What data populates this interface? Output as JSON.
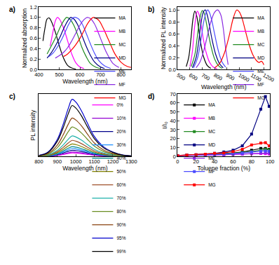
{
  "chart_data": [
    {
      "type": "line",
      "title": "a)",
      "x_label": "Wavelength (nm)",
      "y_label": "Normalized absorption",
      "xlim": [
        400,
        850
      ],
      "xticks": [
        400,
        500,
        600,
        700,
        800
      ],
      "ylim": [
        0,
        1.2
      ],
      "yticks": [
        {
          "value": 0,
          "label": "0.0"
        },
        {
          "value": 0.2,
          "label": "0.2"
        },
        {
          "value": 0.4,
          "label": "0.4"
        },
        {
          "value": 0.6,
          "label": "0.6"
        },
        {
          "value": 0.8,
          "label": "0.8"
        },
        {
          "value": 1.0,
          "label": "1.0"
        },
        {
          "value": 1.2,
          "label": "1.2"
        }
      ],
      "grid": false,
      "legend": "upper right",
      "series": [
        {
          "name": "MA",
          "color": "#000000",
          "x": [
            420,
            430,
            440,
            450,
            460,
            480,
            500,
            520,
            540,
            560,
            580
          ],
          "values": [
            0.55,
            0.8,
            0.97,
            0.99,
            0.93,
            0.72,
            0.45,
            0.22,
            0.08,
            0.03,
            0.01
          ]
        },
        {
          "name": "MB",
          "color": "#ff00ff",
          "x": [
            455,
            470,
            480,
            490,
            500,
            520,
            540,
            560,
            580,
            600,
            620
          ],
          "values": [
            0.45,
            0.75,
            0.93,
            1.0,
            0.97,
            0.8,
            0.55,
            0.3,
            0.13,
            0.05,
            0.02
          ]
        },
        {
          "name": "MC",
          "color": "#228b22",
          "x": [
            440,
            460,
            480,
            500,
            520,
            535,
            550,
            570,
            590,
            610,
            630,
            650,
            680,
            700
          ],
          "values": [
            0.3,
            0.45,
            0.6,
            0.78,
            0.93,
            1.0,
            0.97,
            0.85,
            0.65,
            0.42,
            0.25,
            0.12,
            0.04,
            0.02
          ]
        },
        {
          "name": "MD",
          "color": "#000080",
          "x": [
            440,
            460,
            480,
            500,
            520,
            540,
            555,
            570,
            590,
            610,
            630,
            650,
            670,
            700,
            720
          ],
          "values": [
            0.22,
            0.32,
            0.45,
            0.6,
            0.78,
            0.93,
            1.0,
            0.97,
            0.85,
            0.65,
            0.45,
            0.28,
            0.15,
            0.05,
            0.02
          ]
        },
        {
          "name": "ME",
          "color": "#4b4bff",
          "x": [
            450,
            470,
            490,
            510,
            530,
            550,
            570,
            590,
            610,
            630,
            650,
            670,
            690,
            720,
            750
          ],
          "values": [
            0.25,
            0.32,
            0.43,
            0.57,
            0.74,
            0.9,
            1.0,
            0.98,
            0.88,
            0.7,
            0.5,
            0.32,
            0.18,
            0.07,
            0.02
          ]
        },
        {
          "name": "MF",
          "color": "#8a2be2",
          "x": [
            480,
            500,
            520,
            540,
            560,
            580,
            600,
            620,
            635,
            650,
            670,
            690,
            710,
            730,
            760,
            790
          ],
          "values": [
            0.22,
            0.27,
            0.33,
            0.42,
            0.55,
            0.7,
            0.85,
            0.96,
            1.0,
            0.98,
            0.88,
            0.7,
            0.5,
            0.32,
            0.12,
            0.04
          ]
        },
        {
          "name": "MG",
          "color": "#ff0000",
          "x": [
            520,
            540,
            560,
            580,
            600,
            620,
            640,
            665,
            690,
            710,
            730,
            750,
            770,
            800,
            830,
            850
          ],
          "values": [
            0.25,
            0.3,
            0.38,
            0.48,
            0.6,
            0.75,
            0.9,
            1.0,
            0.95,
            0.82,
            0.65,
            0.47,
            0.3,
            0.14,
            0.06,
            0.04
          ]
        }
      ]
    },
    {
      "type": "line",
      "title": "b)",
      "x_label": "Wavelength (nm)",
      "y_label": "Normalized PL intensity",
      "xlim": [
        500,
        1250
      ],
      "xticks": [
        500,
        600,
        700,
        800,
        900,
        1000,
        1100,
        1200
      ],
      "ylim": [
        0,
        1.05
      ],
      "yticks": [
        {
          "value": 0,
          "label": "0.0"
        },
        {
          "value": 0.2,
          "label": "0.2"
        },
        {
          "value": 0.4,
          "label": "0.4"
        },
        {
          "value": 0.6,
          "label": "0.6"
        },
        {
          "value": 0.8,
          "label": "0.8"
        },
        {
          "value": 1.0,
          "label": "1.0"
        }
      ],
      "grid": false,
      "legend": "upper right",
      "series": [
        {
          "name": "MA",
          "color": "#000000",
          "x": [
            570,
            590,
            610,
            625,
            640,
            655,
            670,
            690,
            710,
            740,
            770
          ],
          "values": [
            0.05,
            0.2,
            0.55,
            0.85,
            0.98,
            0.9,
            0.7,
            0.42,
            0.22,
            0.07,
            0.02
          ]
        },
        {
          "name": "MB",
          "color": "#ff00ff",
          "x": [
            600,
            620,
            640,
            660,
            675,
            690,
            710,
            730,
            760,
            790,
            820
          ],
          "values": [
            0.05,
            0.3,
            0.75,
            0.98,
            0.92,
            0.75,
            0.5,
            0.3,
            0.12,
            0.04,
            0.01
          ]
        },
        {
          "name": "MC",
          "color": "#228b22",
          "x": [
            610,
            640,
            660,
            680,
            700,
            715,
            730,
            750,
            770,
            800,
            830,
            860
          ],
          "values": [
            0.05,
            0.25,
            0.55,
            0.85,
            0.99,
            0.95,
            0.82,
            0.6,
            0.4,
            0.18,
            0.07,
            0.02
          ]
        },
        {
          "name": "MD",
          "color": "#000080",
          "x": [
            620,
            650,
            670,
            690,
            710,
            725,
            740,
            760,
            780,
            810,
            840,
            870
          ],
          "values": [
            0.03,
            0.2,
            0.45,
            0.78,
            0.97,
            1.0,
            0.92,
            0.72,
            0.5,
            0.25,
            0.1,
            0.03
          ]
        },
        {
          "name": "ME",
          "color": "#4b4bff",
          "x": [
            630,
            660,
            690,
            710,
            730,
            745,
            760,
            780,
            800,
            830,
            860,
            890
          ],
          "values": [
            0.03,
            0.18,
            0.5,
            0.78,
            0.95,
            1.0,
            0.95,
            0.8,
            0.6,
            0.32,
            0.13,
            0.04
          ]
        },
        {
          "name": "MF",
          "color": "#8a2be2",
          "x": [
            650,
            680,
            710,
            740,
            770,
            800,
            825,
            850,
            870,
            890,
            910
          ],
          "values": [
            0.03,
            0.12,
            0.3,
            0.55,
            0.8,
            0.96,
            1.0,
            0.92,
            0.7,
            0.35,
            0.08
          ]
        },
        {
          "name": "MG",
          "color": "#ff0000",
          "x": [
            800,
            840,
            880,
            920,
            950,
            980,
            1000,
            1020,
            1050,
            1080,
            1110,
            1140,
            1160,
            1180,
            1200
          ],
          "values": [
            0.03,
            0.1,
            0.28,
            0.58,
            0.85,
            1.0,
            0.97,
            0.88,
            0.65,
            0.42,
            0.25,
            0.15,
            0.12,
            0.14,
            0.08
          ]
        }
      ]
    },
    {
      "type": "line",
      "title": "c)",
      "x_label": "Wavelength (nm)",
      "y_label": "PL intensity",
      "xlim": [
        800,
        1300
      ],
      "xticks": [
        800,
        900,
        1000,
        1100,
        1200,
        1300
      ],
      "ylim": [
        0,
        70
      ],
      "tick_labels": "x",
      "grid": false,
      "legend": "upper right",
      "x": [
        800,
        850,
        900,
        930,
        960,
        980,
        1000,
        1030,
        1060,
        1100,
        1150,
        1200,
        1250,
        1300
      ],
      "series": [
        {
          "name": "0%",
          "color": "#ff00ff",
          "values": [
            0.08,
            0.32,
            1.2,
            2.2,
            3.4,
            4,
            3.8,
            3.2,
            2.4,
            1.4,
            0.68,
            0.32,
            0.12,
            0.04
          ]
        },
        {
          "name": "10%",
          "color": "#9400d3",
          "values": [
            0.1,
            0.4,
            1.5,
            2.75,
            4.25,
            5,
            4.75,
            4,
            3,
            1.75,
            0.85,
            0.4,
            0.15,
            0.05
          ]
        },
        {
          "name": "20%",
          "color": "#00008b",
          "values": [
            0.14,
            0.56,
            2.1,
            3.85,
            5.95,
            7,
            6.65,
            5.6,
            4.2,
            2.45,
            1.19,
            0.56,
            0.21,
            0.07
          ]
        },
        {
          "name": "30%",
          "color": "#1e90ff",
          "values": [
            0.18,
            0.72,
            2.7,
            4.95,
            7.65,
            9,
            8.55,
            7.2,
            5.4,
            3.15,
            1.53,
            0.72,
            0.27,
            0.09
          ]
        },
        {
          "name": "40%",
          "color": "#008b8b",
          "values": [
            0.22,
            0.88,
            3.3,
            6.05,
            9.35,
            11,
            10.45,
            8.8,
            6.6,
            3.85,
            1.87,
            0.88,
            0.33,
            0.11
          ]
        },
        {
          "name": "50%",
          "color": "#808000",
          "values": [
            0.28,
            1.12,
            4.2,
            7.7,
            11.9,
            14,
            13.3,
            11.2,
            8.4,
            4.9,
            2.38,
            1.12,
            0.42,
            0.14
          ]
        },
        {
          "name": "60%",
          "color": "#a0522d",
          "values": [
            0.36,
            1.44,
            5.4,
            9.9,
            15.3,
            18,
            17.1,
            14.4,
            10.8,
            6.3,
            3.06,
            1.44,
            0.54,
            0.18
          ]
        },
        {
          "name": "70%",
          "color": "#20b2aa",
          "values": [
            0.46,
            1.84,
            6.9,
            12.65,
            19.55,
            23,
            21.85,
            18.4,
            13.8,
            8.05,
            3.91,
            1.84,
            0.69,
            0.23
          ]
        },
        {
          "name": "80%",
          "color": "#6b8e23",
          "values": [
            0.66,
            2.64,
            9.9,
            18.15,
            28.05,
            33,
            31.35,
            26.4,
            19.8,
            11.55,
            5.61,
            2.64,
            0.99,
            0.33
          ]
        },
        {
          "name": "90%",
          "color": "#8b4513",
          "values": [
            0.86,
            3.44,
            12.9,
            23.65,
            36.55,
            43,
            40.85,
            34.4,
            25.8,
            15.05,
            7.31,
            3.44,
            1.29,
            0.43
          ]
        },
        {
          "name": "95%",
          "color": "#0000cd",
          "values": [
            1.28,
            5.12,
            19.2,
            35.2,
            54.4,
            64,
            60.8,
            51.2,
            38.4,
            22.4,
            10.88,
            5.12,
            1.92,
            0.64
          ]
        },
        {
          "name": "99%",
          "color": "#000000",
          "values": [
            1.14,
            4.56,
            17.1,
            31.35,
            48.45,
            57,
            54.15,
            45.6,
            34.2,
            19.95,
            9.69,
            4.56,
            1.71,
            0.57
          ]
        }
      ]
    },
    {
      "type": "line",
      "title": "d)",
      "x_label": "Toluene fraction (%)",
      "y_label": "I/I₀",
      "xlim": [
        0,
        100
      ],
      "xticks": [
        0,
        20,
        40,
        60,
        80,
        100
      ],
      "ylim": [
        0,
        70
      ],
      "yticks": [
        0,
        10,
        20,
        30,
        40,
        50,
        60,
        70
      ],
      "grid": false,
      "legend": "upper left",
      "marker": "square",
      "x": [
        0,
        10,
        20,
        30,
        40,
        50,
        60,
        70,
        80,
        90,
        95,
        99
      ],
      "series": [
        {
          "name": "MA",
          "color": "#000000",
          "values": [
            1,
            1.2,
            1.5,
            2,
            2.5,
            3,
            4,
            5,
            7,
            9,
            9,
            8
          ]
        },
        {
          "name": "MB",
          "color": "#ff00ff",
          "values": [
            1,
            1,
            1.2,
            1.4,
            1.6,
            2,
            2.3,
            2.6,
            3,
            3.4,
            3.2,
            2.8
          ]
        },
        {
          "name": "MC",
          "color": "#228b22",
          "values": [
            1,
            1.2,
            1.5,
            2,
            2.5,
            3,
            3.5,
            4.5,
            5.5,
            7,
            8,
            7.5
          ]
        },
        {
          "name": "MD",
          "color": "#000080",
          "values": [
            1,
            1.5,
            2,
            2.5,
            3.5,
            5,
            7,
            12,
            25,
            53,
            67,
            56
          ]
        },
        {
          "name": "ME",
          "color": "#8a2be2",
          "values": [
            1,
            1.1,
            1.3,
            1.5,
            1.7,
            2,
            2.4,
            2.8,
            3.5,
            4,
            4.2,
            3.8
          ]
        },
        {
          "name": "MF",
          "color": "#4b4bff",
          "values": [
            1,
            1.2,
            1.5,
            1.8,
            2.2,
            2.7,
            3.2,
            4,
            5,
            6,
            6.3,
            5.8
          ]
        },
        {
          "name": "MG",
          "color": "#ff0000",
          "values": [
            1,
            1.5,
            2,
            2.5,
            3.5,
            4,
            5.5,
            8,
            13,
            15,
            15.5,
            12
          ]
        }
      ]
    }
  ]
}
